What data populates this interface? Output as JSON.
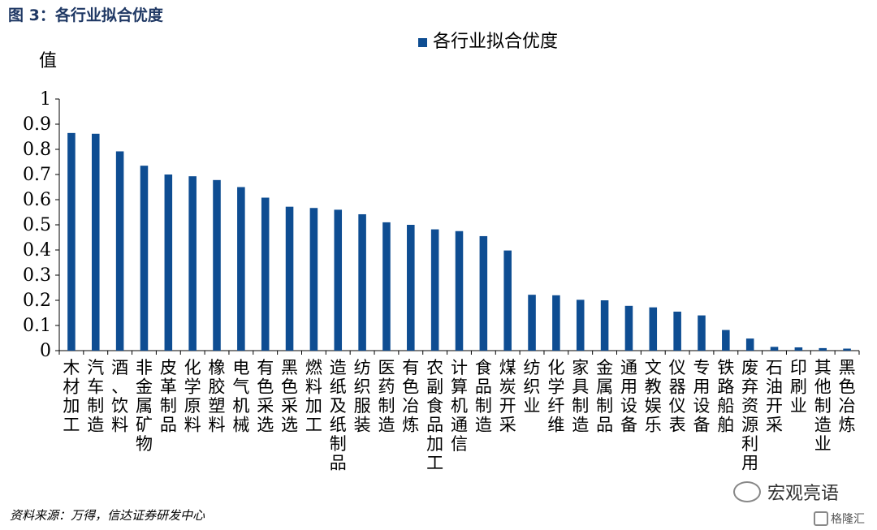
{
  "figure_title": "图 3：各行业拟合优度",
  "source_note": "资料来源：万得，信达证券研发中心",
  "watermark_main": "宏观亮语",
  "watermark_secondary": "格隆汇",
  "colors": {
    "bar": "#0e4d92",
    "title": "#1f3864"
  },
  "chart_data": {
    "type": "bar",
    "ylabel": "值",
    "ylim": [
      0,
      1
    ],
    "yticks": [
      "0",
      "0.1",
      "0.2",
      "0.3",
      "0.4",
      "0.5",
      "0.6",
      "0.7",
      "0.8",
      "0.9",
      "1"
    ],
    "legend": {
      "position": "top-center"
    },
    "grid": false,
    "categories": [
      "木材加工",
      "汽车制造",
      "酒、饮料",
      "非金属矿物",
      "皮革制品",
      "化学原料",
      "橡胶塑料",
      "电气机械",
      "有色采选",
      "黑色采选",
      "燃料加工",
      "造纸及纸制品",
      "纺织服装",
      "医药制造",
      "有色冶炼",
      "农副食品加工",
      "计算机通信",
      "食品制造",
      "煤炭开采",
      "纺织业",
      "化学纤维",
      "家具制造",
      "金属制品",
      "通用设备",
      "文教娱乐",
      "仪器仪表",
      "专用设备",
      "铁路船舶",
      "废弃资源利用",
      "石油开采",
      "印刷业",
      "其他制造业",
      "黑色冶炼"
    ],
    "series": [
      {
        "name": "各行业拟合优度",
        "values": [
          0.865,
          0.862,
          0.792,
          0.735,
          0.7,
          0.693,
          0.678,
          0.65,
          0.608,
          0.572,
          0.567,
          0.56,
          0.542,
          0.51,
          0.5,
          0.482,
          0.475,
          0.455,
          0.398,
          0.222,
          0.22,
          0.202,
          0.2,
          0.178,
          0.172,
          0.155,
          0.14,
          0.082,
          0.048,
          0.015,
          0.013,
          0.01,
          0.008
        ]
      }
    ]
  }
}
